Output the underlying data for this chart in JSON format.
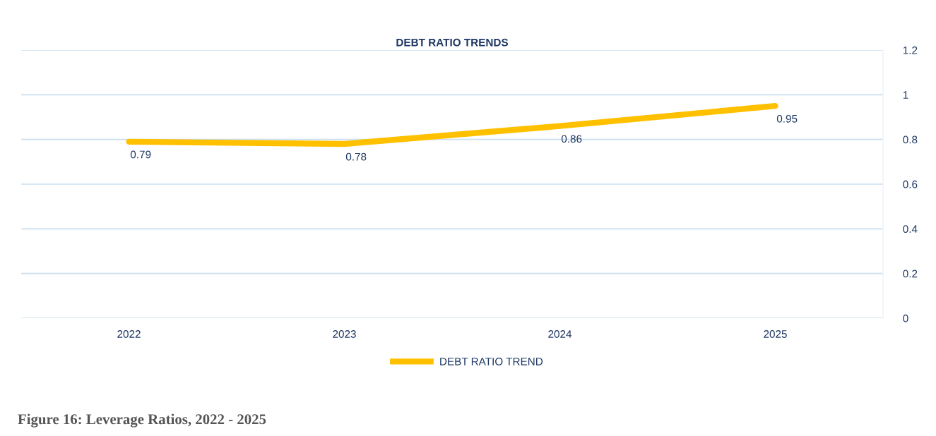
{
  "chart_data": {
    "type": "line",
    "title": "DEBT RATIO TRENDS",
    "categories": [
      "2022",
      "2023",
      "2024",
      "2025"
    ],
    "series": [
      {
        "name": "DEBT RATIO TREND",
        "color": "#ffc000",
        "values": [
          0.79,
          0.78,
          0.86,
          0.95
        ]
      }
    ],
    "ylim": [
      0,
      1.2
    ],
    "yticks": [
      0,
      0.2,
      0.4,
      0.6,
      0.8,
      1,
      1.2
    ],
    "grid": "y",
    "legend": "bottom",
    "data_labels": true,
    "marker": "none",
    "line_style": "solid",
    "annotations": [
      "Figure 16: Leverage Ratios, 2022 - 2025"
    ]
  }
}
